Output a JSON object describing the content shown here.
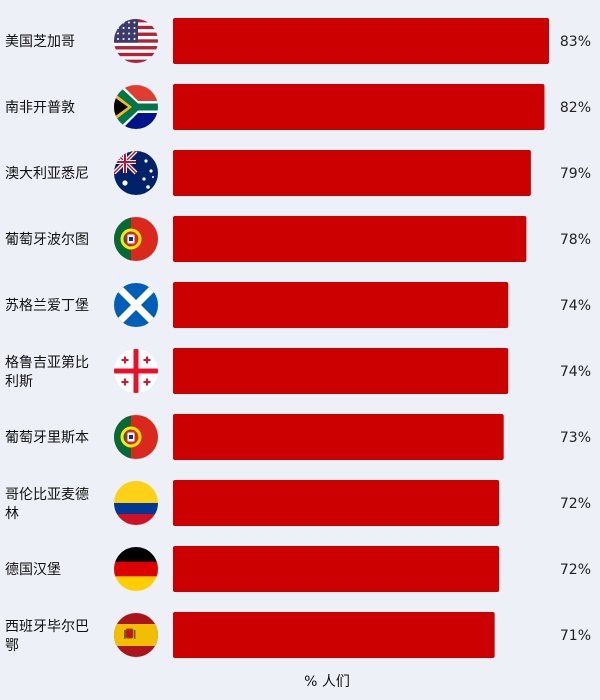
{
  "chart_data": {
    "type": "bar",
    "orientation": "horizontal",
    "categories": [
      "美国芝加哥",
      "南非开普敦",
      "澳大利亚悉尼",
      "葡萄牙波尔图",
      "苏格兰爱丁堡",
      "格鲁吉亚第比利斯",
      "葡萄牙里斯本",
      "哥伦比亚麦德林",
      "德国汉堡",
      "西班牙毕尔巴鄂"
    ],
    "values": [
      83,
      82,
      79,
      78,
      74,
      74,
      73,
      72,
      72,
      71
    ],
    "value_labels": [
      "83%",
      "82%",
      "79%",
      "78%",
      "74%",
      "74%",
      "73%",
      "72%",
      "72%",
      "71%"
    ],
    "flags": [
      "us-flag-icon",
      "za-flag-icon",
      "au-flag-icon",
      "pt-flag-icon",
      "scotland-flag-icon",
      "ge-flag-icon",
      "pt-flag-icon",
      "co-flag-icon",
      "de-flag-icon",
      "es-flag-icon"
    ],
    "xlabel": "% 人们",
    "xlim": [
      0,
      83
    ],
    "bar_color": "#cc0000",
    "grid": false,
    "legend": "none"
  }
}
